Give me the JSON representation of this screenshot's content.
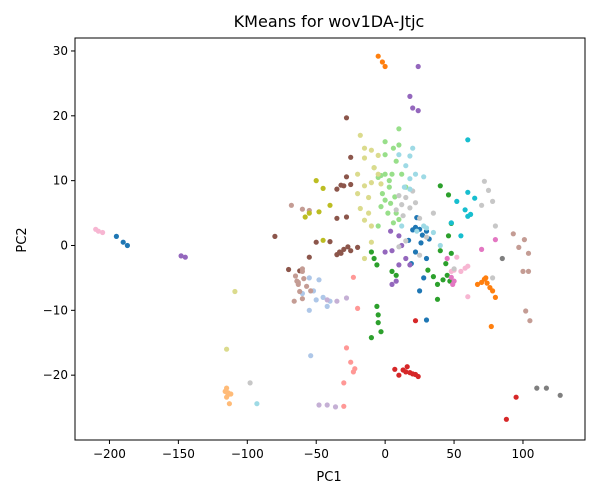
{
  "chart_data": {
    "type": "scatter",
    "title": "KMeans for wov1DA-Jtjc",
    "xlabel": "PC1",
    "ylabel": "PC2",
    "xlim": [
      -225,
      145
    ],
    "ylim": [
      -30,
      32
    ],
    "xticks": [
      -200,
      -150,
      -100,
      -50,
      0,
      50,
      100
    ],
    "yticks": [
      -20,
      -10,
      0,
      10,
      20,
      30
    ],
    "grid": false,
    "legend": "none",
    "clusters": [
      {
        "color": "#1f77b4",
        "points": [
          [
            -195,
            1.4
          ],
          [
            -190,
            0.5
          ],
          [
            -187,
            0
          ],
          [
            17,
            0.8
          ],
          [
            20,
            2.4
          ],
          [
            22,
            2.8
          ],
          [
            25,
            2.5
          ],
          [
            27,
            1.6
          ],
          [
            30,
            2.2
          ],
          [
            22,
            -1
          ],
          [
            26,
            0.4
          ],
          [
            30,
            -2
          ],
          [
            28,
            -5
          ],
          [
            25,
            -7
          ],
          [
            30,
            -11.5
          ],
          [
            19,
            -2.8
          ],
          [
            23,
            4.3
          ],
          [
            32,
            1
          ]
        ]
      },
      {
        "color": "#aec7e8",
        "points": [
          [
            -55,
            -5
          ],
          [
            -52,
            -7
          ],
          [
            -48,
            -5.3
          ],
          [
            -45,
            -8
          ],
          [
            -42,
            -9.4
          ],
          [
            -55,
            -10
          ],
          [
            -50,
            -8.4
          ],
          [
            -54,
            -17
          ],
          [
            -60,
            -7.4
          ],
          [
            -40,
            -8.6
          ]
        ]
      },
      {
        "color": "#ff7f0e",
        "points": [
          [
            -5,
            29.2
          ],
          [
            -2,
            28.3
          ],
          [
            0,
            27.6
          ],
          [
            67,
            -6
          ],
          [
            70,
            -5.7
          ],
          [
            72,
            -5.2
          ],
          [
            74,
            -5.8
          ],
          [
            76,
            -6.5
          ],
          [
            78,
            -7
          ],
          [
            80,
            -8
          ],
          [
            73,
            -5
          ],
          [
            77,
            -12.5
          ]
        ]
      },
      {
        "color": "#ffbb78",
        "points": [
          [
            -115,
            -22
          ],
          [
            -114,
            -23
          ],
          [
            -113,
            -24.4
          ],
          [
            -115,
            -23.4
          ],
          [
            -114,
            -22.7
          ],
          [
            -112,
            -22.9
          ],
          [
            -116,
            -22.5
          ]
        ]
      },
      {
        "color": "#2ca02c",
        "points": [
          [
            40,
            9.2
          ],
          [
            46,
            7.8
          ],
          [
            48,
            3.4
          ],
          [
            46,
            1.5
          ],
          [
            40,
            -0.8
          ],
          [
            44,
            -2.8
          ],
          [
            45,
            -4.6
          ],
          [
            47,
            -5.5
          ],
          [
            38,
            -6
          ],
          [
            35,
            -4.8
          ],
          [
            31,
            -3.8
          ],
          [
            48,
            -1.2
          ],
          [
            42,
            -5.3
          ],
          [
            -10,
            -1
          ],
          [
            -8,
            -2
          ],
          [
            -6,
            -3
          ],
          [
            5,
            -4
          ],
          [
            8,
            -4.6
          ],
          [
            -6,
            -9.4
          ],
          [
            -5,
            -10.7
          ],
          [
            -5,
            -11.9
          ],
          [
            -3,
            -13.3
          ],
          [
            -10,
            -14.2
          ],
          [
            38,
            -8.3
          ]
        ]
      },
      {
        "color": "#98df8a",
        "points": [
          [
            -5,
            10.5
          ],
          [
            -3,
            10.8
          ],
          [
            0,
            11
          ],
          [
            3,
            10
          ],
          [
            5,
            11
          ],
          [
            8,
            13
          ],
          [
            6,
            15
          ],
          [
            10,
            15.5
          ],
          [
            0,
            14
          ],
          [
            0,
            16
          ],
          [
            10,
            18
          ],
          [
            3,
            9
          ],
          [
            -2,
            8
          ],
          [
            7,
            7.5
          ],
          [
            0,
            7
          ],
          [
            4,
            6.5
          ],
          [
            8,
            5
          ],
          [
            10,
            4
          ],
          [
            -3,
            6
          ],
          [
            2,
            5
          ],
          [
            -5,
            3
          ],
          [
            6,
            3.5
          ],
          [
            15,
            9
          ],
          [
            -8,
            12
          ],
          [
            12,
            11
          ]
        ]
      },
      {
        "color": "#d62728",
        "points": [
          [
            7,
            -19.1
          ],
          [
            10,
            -20
          ],
          [
            13,
            -19.2
          ],
          [
            15,
            -19.5
          ],
          [
            18,
            -19.6
          ],
          [
            20,
            -19.8
          ],
          [
            22,
            -19.9
          ],
          [
            24,
            -20.2
          ],
          [
            16,
            -18.7
          ],
          [
            22,
            -11.6
          ],
          [
            95,
            -23.4
          ],
          [
            88,
            -26.8
          ]
        ]
      },
      {
        "color": "#ff9896",
        "points": [
          [
            -20,
            -9.7
          ],
          [
            -28,
            -15.8
          ],
          [
            -25,
            -18
          ],
          [
            -22,
            -19
          ],
          [
            -30,
            -21.2
          ],
          [
            -30,
            -24.8
          ],
          [
            -23,
            -19.5
          ],
          [
            -23,
            -4.9
          ]
        ]
      },
      {
        "color": "#9467bd",
        "points": [
          [
            -148,
            -1.6
          ],
          [
            -145,
            -1.8
          ],
          [
            18,
            23
          ],
          [
            20,
            21.2
          ],
          [
            24,
            20.8
          ],
          [
            24,
            27.6
          ],
          [
            0,
            -1
          ],
          [
            5,
            -0.8
          ],
          [
            10,
            -3
          ],
          [
            15,
            -2
          ],
          [
            5,
            -6
          ],
          [
            8,
            -5.5
          ],
          [
            12,
            0
          ],
          [
            18,
            -3
          ],
          [
            4,
            2.2
          ],
          [
            10,
            1.5
          ]
        ]
      },
      {
        "color": "#c5b0d5",
        "points": [
          [
            -48,
            -24.6
          ],
          [
            -42,
            -24.6
          ],
          [
            -36,
            -24.9
          ],
          [
            -42,
            -8.4
          ],
          [
            -35,
            -8.6
          ],
          [
            -28,
            -8.1
          ]
        ]
      },
      {
        "color": "#8c564b",
        "points": [
          [
            -28,
            19.7
          ],
          [
            -25,
            13.6
          ],
          [
            -28,
            10.6
          ],
          [
            -30,
            9.2
          ],
          [
            -25,
            9.4
          ],
          [
            -35,
            8.7
          ],
          [
            -32,
            9.3
          ],
          [
            -50,
            0.5
          ],
          [
            -40,
            0.6
          ],
          [
            -35,
            -1.4
          ],
          [
            -32,
            -1.2
          ],
          [
            -30,
            -0.6
          ],
          [
            -27,
            -0.2
          ],
          [
            -28,
            4.4
          ],
          [
            -35,
            4.2
          ],
          [
            -33,
            -1
          ],
          [
            -25,
            -0.8
          ],
          [
            -20,
            -0.3
          ],
          [
            -80,
            1.4
          ],
          [
            -70,
            -3.7
          ],
          [
            -62,
            -3.9
          ],
          [
            -55,
            -1.8
          ]
        ]
      },
      {
        "color": "#c49c94",
        "points": [
          [
            -68,
            6.2
          ],
          [
            -60,
            5.6
          ],
          [
            -55,
            5.4
          ],
          [
            -65,
            -4.7
          ],
          [
            -63,
            -5.7
          ],
          [
            -59,
            -5.1
          ],
          [
            -62,
            -7.1
          ],
          [
            -66,
            -8.6
          ],
          [
            -60,
            -8.2
          ],
          [
            -57,
            -6.3
          ],
          [
            -60,
            -4
          ],
          [
            -54,
            -7
          ],
          [
            -63,
            -6
          ],
          [
            -60,
            -3.6
          ],
          [
            -64,
            -5.5
          ],
          [
            100,
            -4
          ],
          [
            101,
            0.9
          ],
          [
            104,
            -1.2
          ],
          [
            104,
            -4
          ],
          [
            102,
            -10.1
          ],
          [
            105,
            -11.6
          ],
          [
            97,
            -0.3
          ],
          [
            93,
            1.8
          ]
        ]
      },
      {
        "color": "#e377c2",
        "points": [
          [
            80,
            0.9
          ],
          [
            70,
            -0.6
          ],
          [
            50,
            -5.5
          ],
          [
            49,
            -6
          ],
          [
            48,
            -4.9
          ],
          [
            45,
            -2
          ]
        ]
      },
      {
        "color": "#f7b6d2",
        "points": [
          [
            -210,
            2.5
          ],
          [
            -208,
            2.2
          ],
          [
            -205,
            2
          ],
          [
            58,
            -3.5
          ],
          [
            60,
            -3.2
          ],
          [
            50,
            -3.8
          ],
          [
            52,
            -1.8
          ],
          [
            55,
            -4
          ],
          [
            48,
            -4
          ],
          [
            60,
            -7.9
          ]
        ]
      },
      {
        "color": "#7f7f7f",
        "points": [
          [
            110,
            -22
          ],
          [
            117,
            -22
          ],
          [
            127,
            -23.1
          ],
          [
            85,
            -2
          ]
        ]
      },
      {
        "color": "#c7c7c7",
        "points": [
          [
            72,
            9.9
          ],
          [
            75,
            8.5
          ],
          [
            78,
            6.8
          ],
          [
            80,
            3
          ],
          [
            78,
            -5
          ],
          [
            70,
            6.2
          ],
          [
            25,
            -1.5
          ],
          [
            20,
            8.4
          ],
          [
            15,
            7.4
          ],
          [
            10,
            7.7
          ],
          [
            12,
            6.3
          ],
          [
            8,
            5.5
          ],
          [
            13,
            4.6
          ],
          [
            18,
            5.8
          ],
          [
            22,
            6.6
          ],
          [
            25,
            4.2
          ],
          [
            30,
            1.3
          ],
          [
            35,
            5
          ],
          [
            15,
            0.7
          ],
          [
            10,
            -0.2
          ],
          [
            -98,
            -21.2
          ],
          [
            50,
            -3.6
          ]
        ]
      },
      {
        "color": "#bcbd22",
        "points": [
          [
            -50,
            10
          ],
          [
            -45,
            8.8
          ],
          [
            -40,
            6.2
          ],
          [
            -55,
            5
          ],
          [
            -58,
            4.4
          ],
          [
            -48,
            5.2
          ],
          [
            -45,
            0.8
          ]
        ]
      },
      {
        "color": "#dbdb8d",
        "points": [
          [
            -18,
            17
          ],
          [
            -15,
            15
          ],
          [
            -10,
            14.7
          ],
          [
            -15,
            13.5
          ],
          [
            -5,
            13.9
          ],
          [
            -20,
            11
          ],
          [
            -10,
            9.7
          ],
          [
            -15,
            9.2
          ],
          [
            -5,
            11
          ],
          [
            -12,
            7.4
          ],
          [
            -20,
            8
          ],
          [
            -18,
            5.7
          ],
          [
            -12,
            5
          ],
          [
            -15,
            3.9
          ],
          [
            -10,
            3
          ],
          [
            -15,
            -2
          ],
          [
            -109,
            -7.1
          ],
          [
            -115,
            -16
          ],
          [
            -10,
            0.5
          ],
          [
            -8,
            12
          ],
          [
            -3,
            9.5
          ]
        ]
      },
      {
        "color": "#17becf",
        "points": [
          [
            65,
            7.3
          ],
          [
            58,
            5.5
          ],
          [
            60,
            4.5
          ],
          [
            52,
            6.8
          ],
          [
            60,
            16.3
          ],
          [
            60,
            8.2
          ],
          [
            55,
            1.5
          ],
          [
            48,
            3.5
          ],
          [
            62,
            4.8
          ]
        ]
      },
      {
        "color": "#9edae5",
        "points": [
          [
            10,
            14
          ],
          [
            15,
            12.3
          ],
          [
            18,
            13.8
          ],
          [
            20,
            15
          ],
          [
            28,
            10.6
          ],
          [
            14,
            9
          ],
          [
            18,
            8.7
          ],
          [
            22,
            11
          ],
          [
            23,
            2.2
          ],
          [
            28,
            3
          ],
          [
            30,
            2.7
          ],
          [
            35,
            2
          ],
          [
            40,
            0
          ],
          [
            -93,
            -24.4
          ],
          [
            18,
            10.3
          ],
          [
            12,
            3
          ]
        ]
      }
    ]
  }
}
